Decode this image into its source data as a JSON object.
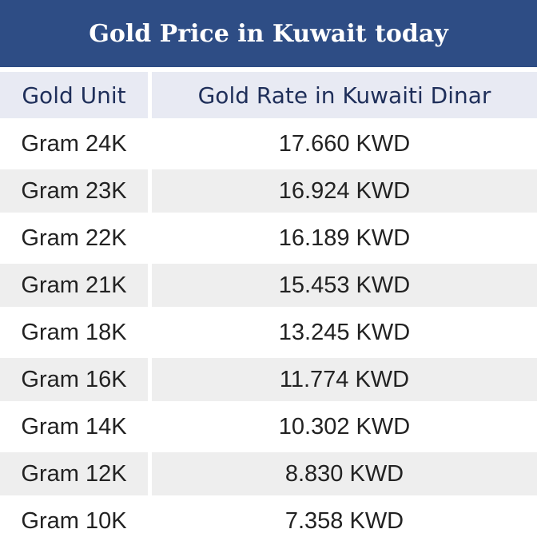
{
  "title": "Gold Price in Kuwait today",
  "header": {
    "unit": "Gold Unit",
    "rate": "Gold Rate in Kuwaiti Dinar"
  },
  "rows": [
    {
      "unit": "Gram 24K",
      "rate": "17.660 KWD"
    },
    {
      "unit": "Gram 23K",
      "rate": "16.924 KWD"
    },
    {
      "unit": "Gram 22K",
      "rate": "16.189 KWD"
    },
    {
      "unit": "Gram 21K",
      "rate": "15.453 KWD"
    },
    {
      "unit": "Gram 18K",
      "rate": "13.245 KWD"
    },
    {
      "unit": "Gram 16K",
      "rate": "11.774 KWD"
    },
    {
      "unit": "Gram 14K",
      "rate": "10.302 KWD"
    },
    {
      "unit": "Gram 12K",
      "rate": "8.830 KWD"
    },
    {
      "unit": "Gram 10K",
      "rate": "7.358 KWD"
    }
  ],
  "colors": {
    "title_background": "#2e4d85",
    "header_background": "#e8eaf3",
    "alt_row_background": "#eeeeee"
  }
}
